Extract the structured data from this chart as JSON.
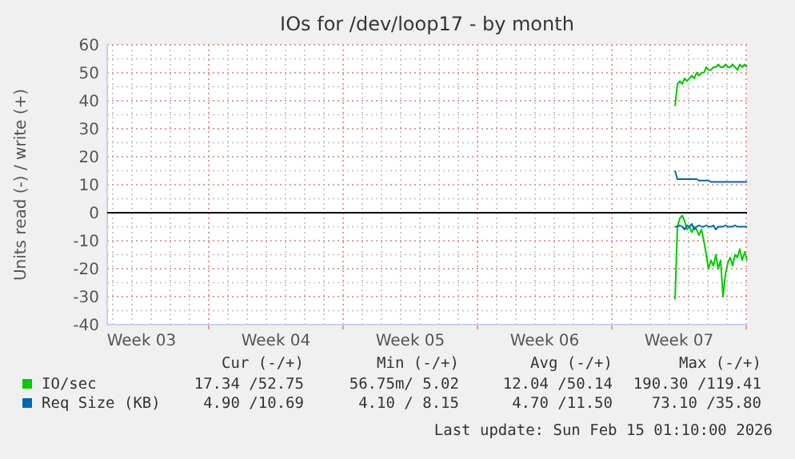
{
  "chart_data": {
    "type": "line",
    "title": "IOs for /dev/loop17 - by month",
    "ylabel": "Units read (-) / write (+)",
    "x": [
      "2026-02-11T07:00",
      "2026-02-11T10:00",
      "2026-02-11T13:00",
      "2026-02-11T16:00",
      "2026-02-11T19:00",
      "2026-02-11T22:00",
      "2026-02-12T01:00",
      "2026-02-12T04:00",
      "2026-02-12T07:00",
      "2026-02-12T10:00",
      "2026-02-12T13:00",
      "2026-02-12T16:00",
      "2026-02-12T19:00",
      "2026-02-12T22:00",
      "2026-02-13T01:00",
      "2026-02-13T04:00",
      "2026-02-13T07:00",
      "2026-02-13T10:00",
      "2026-02-13T13:00",
      "2026-02-13T16:00",
      "2026-02-13T19:00",
      "2026-02-13T22:00",
      "2026-02-14T01:00",
      "2026-02-14T04:00",
      "2026-02-14T07:00",
      "2026-02-14T10:00",
      "2026-02-14T13:00",
      "2026-02-14T16:00",
      "2026-02-14T19:00",
      "2026-02-14T22:00",
      "2026-02-15T01:00"
    ],
    "series": [
      {
        "name": "IO/sec",
        "color": "#00cc00",
        "values": [
          38,
          46,
          47,
          46,
          48,
          47,
          48,
          49,
          48,
          50,
          49,
          50,
          50,
          52,
          51,
          51,
          52,
          52,
          53,
          52,
          52,
          53,
          52,
          52,
          53,
          52,
          51,
          53,
          52,
          53,
          52
        ]
      },
      {
        "color": "#00cc00",
        "values": [
          -31,
          -5,
          -2,
          -1,
          -3,
          -6,
          -5,
          -7,
          -5,
          -6,
          -8,
          -6,
          -10,
          -15,
          -20,
          -17,
          -19,
          -15,
          -20,
          -17,
          -30,
          -22,
          -18,
          -16,
          -19,
          -15,
          -16,
          -13,
          -17,
          -14,
          -17
        ]
      },
      {
        "name": "Req Size (KB)",
        "color": "#0066b3",
        "values": [
          15,
          12,
          12,
          12,
          12,
          12,
          12,
          12,
          12,
          12,
          11.5,
          11.5,
          11.5,
          11.5,
          11.5,
          11,
          11,
          11,
          11,
          11,
          11,
          11,
          11,
          11,
          11,
          11,
          11,
          11,
          11,
          11,
          11
        ]
      },
      {
        "color": "#0066b3",
        "values": [
          -5,
          -5,
          -4.5,
          -5,
          -6,
          -4.5,
          -5,
          -4,
          -6,
          -5,
          -4.5,
          -5,
          -5,
          -4.5,
          -5,
          -5,
          -4.5,
          -6,
          -5,
          -5,
          -5,
          -4.5,
          -5,
          -5,
          -5,
          -4.5,
          -5,
          -5,
          -5,
          -5,
          -5
        ]
      }
    ],
    "xlim": [
      "2026-01-12T17:00",
      "2026-02-15T01:00"
    ],
    "xticks": [
      {
        "value": "2026-01-14T12:00",
        "label": "Week 03"
      },
      {
        "value": "2026-01-18T00:00",
        "label": null
      },
      {
        "value": "2026-01-21T12:00",
        "label": "Week 04"
      },
      {
        "value": "2026-01-25T00:00",
        "label": null
      },
      {
        "value": "2026-01-28T12:00",
        "label": "Week 05"
      },
      {
        "value": "2026-02-01T00:00",
        "label": null
      },
      {
        "value": "2026-02-04T12:00",
        "label": "Week 06"
      },
      {
        "value": "2026-02-08T00:00",
        "label": null
      },
      {
        "value": "2026-02-11T12:00",
        "label": "Week 07"
      },
      {
        "value": "2026-02-15T00:00",
        "label": null
      }
    ],
    "ylim": [
      -40,
      60
    ],
    "yticks": [
      -40,
      -30,
      -20,
      -10,
      0,
      10,
      20,
      30,
      40,
      50,
      60
    ],
    "ref_lines": [
      {
        "axis": "y",
        "value": 0,
        "color": "#000000"
      }
    ],
    "grid": true,
    "legend": "bottom",
    "annotations": [
      "Cur (-/+)",
      "Min (-/+)",
      "Avg (-/+)",
      "Max (-/+)",
      "17.34 /52.75",
      "56.75m/ 5.02",
      "12.04 /50.14",
      "190.30 /119.41",
      "4.90 /10.69",
      "4.10 / 8.15",
      "4.70 /11.50",
      "73.10 /35.80",
      "Last update: Sun Feb 15 01:10:00 2026"
    ]
  }
}
